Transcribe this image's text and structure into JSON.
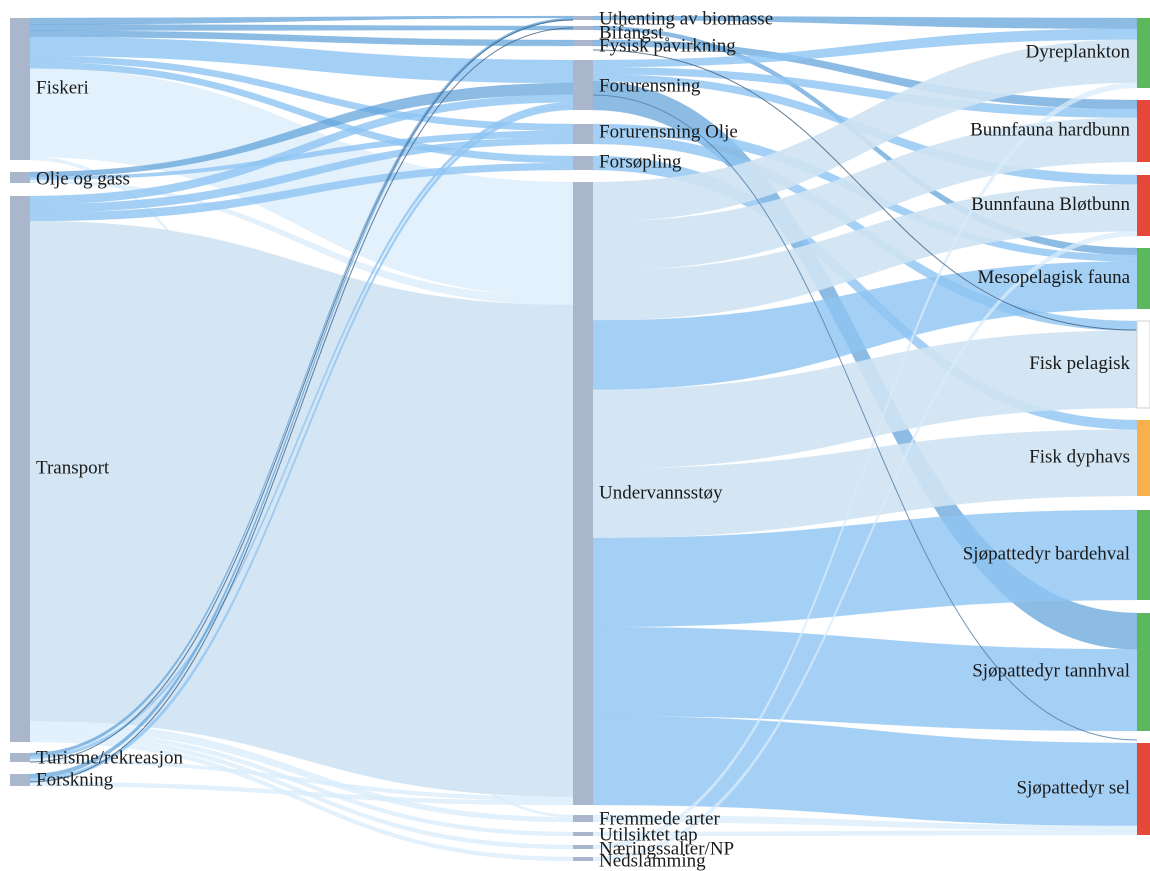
{
  "diagram": {
    "type": "sankey",
    "colors": {
      "node_grey": "#a9b6cc",
      "link_light": "#cfe3f3",
      "link_mid": "#8fc4f2",
      "link_dark": "#5b9fd9",
      "link_pale": "#d8ecfb",
      "status_green": "#5cb85c",
      "status_red": "#e5483b",
      "status_orange": "#f7b04b",
      "status_white": "#ffffff"
    },
    "sources": [
      {
        "id": "fiskeri",
        "label": "Fiskeri"
      },
      {
        "id": "olje",
        "label": "Olje og gass"
      },
      {
        "id": "transport",
        "label": "Transport"
      },
      {
        "id": "turisme",
        "label": "Turisme/rekreasjon"
      },
      {
        "id": "forskning",
        "label": "Forskning"
      }
    ],
    "pressures": [
      {
        "id": "uthenting",
        "label": "Uthenting av biomasse"
      },
      {
        "id": "bifangst",
        "label": "Bifangst"
      },
      {
        "id": "fysisk",
        "label": "Fysisk påvirkning"
      },
      {
        "id": "forurensning",
        "label": "Forurensning"
      },
      {
        "id": "forurensning_olje",
        "label": "Forurensning Olje"
      },
      {
        "id": "forsopling",
        "label": "Forsøpling"
      },
      {
        "id": "undervannsstoy",
        "label": "Undervannsstøy"
      },
      {
        "id": "fremmede",
        "label": "Fremmede arter"
      },
      {
        "id": "utilsiktet",
        "label": "Utilsiktet tap"
      },
      {
        "id": "naringssalter",
        "label": "Næringssalter/NP"
      },
      {
        "id": "nedslamming",
        "label": "Nedslamming"
      }
    ],
    "targets": [
      {
        "id": "dyreplankton",
        "label": "Dyreplankton",
        "status": "green"
      },
      {
        "id": "bunnfauna_hard",
        "label": "Bunnfauna hardbunn",
        "status": "red"
      },
      {
        "id": "bunnfauna_blot",
        "label": "Bunnfauna Bløtbunn",
        "status": "red"
      },
      {
        "id": "mesopelagisk",
        "label": "Mesopelagisk fauna",
        "status": "green"
      },
      {
        "id": "fisk_pelagisk",
        "label": "Fisk pelagisk",
        "status": "white"
      },
      {
        "id": "fisk_dyphavs",
        "label": "Fisk dyphavs",
        "status": "orange"
      },
      {
        "id": "bardehval",
        "label": "Sjøpattedyr bardehval",
        "status": "green"
      },
      {
        "id": "tannhval",
        "label": "Sjøpattedyr tannhval",
        "status": "green"
      },
      {
        "id": "sel",
        "label": "Sjøpattedyr sel",
        "status": "red"
      }
    ],
    "links": [
      {
        "source": "fiskeri",
        "target": "uthenting",
        "value": 1,
        "shade": "dark"
      },
      {
        "source": "fiskeri",
        "target": "bifangst",
        "value": 1,
        "shade": "dark"
      },
      {
        "source": "fiskeri",
        "target": "fysisk",
        "value": 1,
        "shade": "dark"
      },
      {
        "source": "fiskeri",
        "target": "forurensning",
        "value": 3,
        "shade": "mid"
      },
      {
        "source": "fiskeri",
        "target": "forurensning_olje",
        "value": 1,
        "shade": "mid"
      },
      {
        "source": "fiskeri",
        "target": "forsopling",
        "value": 1,
        "shade": "mid"
      },
      {
        "source": "fiskeri",
        "target": "undervannsstoy",
        "value": 14,
        "shade": "pale"
      },
      {
        "source": "fiskeri",
        "target": "fremmede",
        "value": 0.5,
        "shade": "pale"
      },
      {
        "source": "olje",
        "target": "forurensning",
        "value": 1.5,
        "shade": "dark"
      },
      {
        "source": "olje",
        "target": "forurensning_olje",
        "value": 1,
        "shade": "mid"
      },
      {
        "source": "olje",
        "target": "undervannsstoy",
        "value": 1,
        "shade": "pale"
      },
      {
        "source": "transport",
        "target": "forurensning",
        "value": 1,
        "shade": "mid"
      },
      {
        "source": "transport",
        "target": "forurensning_olje",
        "value": 1,
        "shade": "mid"
      },
      {
        "source": "transport",
        "target": "forsopling",
        "value": 1,
        "shade": "mid"
      },
      {
        "source": "transport",
        "target": "undervannsstoy",
        "value": 60,
        "shade": "light"
      },
      {
        "source": "transport",
        "target": "fremmede",
        "value": 1,
        "shade": "pale"
      },
      {
        "source": "transport",
        "target": "utilsiktet",
        "value": 0.5,
        "shade": "pale"
      },
      {
        "source": "transport",
        "target": "naringssalter",
        "value": 0.5,
        "shade": "pale"
      },
      {
        "source": "transport",
        "target": "nedslamming",
        "value": 0.5,
        "shade": "pale"
      },
      {
        "source": "turisme",
        "target": "uthenting",
        "value": 0.5,
        "shade": "dark"
      },
      {
        "source": "turisme",
        "target": "forurensning",
        "value": 0.5,
        "shade": "mid"
      },
      {
        "source": "turisme",
        "target": "undervannsstoy",
        "value": 0.5,
        "shade": "pale"
      },
      {
        "source": "forskning",
        "target": "uthenting",
        "value": 0.5,
        "shade": "dark"
      },
      {
        "source": "forskning",
        "target": "forurensning",
        "value": 0.5,
        "shade": "mid"
      },
      {
        "source": "forskning",
        "target": "undervannsstoy",
        "value": 0.5,
        "shade": "pale"
      },
      {
        "source": "uthenting",
        "target": "dyreplankton",
        "value": 1,
        "shade": "dark"
      },
      {
        "source": "bifangst",
        "target": "mesopelagisk",
        "value": 1,
        "shade": "dark"
      },
      {
        "source": "fysisk",
        "target": "bunnfauna_hard",
        "value": 1,
        "shade": "dark"
      },
      {
        "source": "forurensning",
        "target": "dyreplankton",
        "value": 1,
        "shade": "mid"
      },
      {
        "source": "forurensning",
        "target": "bunnfauna_hard",
        "value": 1,
        "shade": "mid"
      },
      {
        "source": "forurensning",
        "target": "bunnfauna_blot",
        "value": 1,
        "shade": "mid"
      },
      {
        "source": "forurensning",
        "target": "tannhval",
        "value": 4,
        "shade": "dark"
      },
      {
        "source": "forurensning_olje",
        "target": "mesopelagisk",
        "value": 1,
        "shade": "mid"
      },
      {
        "source": "forurensning_olje",
        "target": "fisk_pelagisk",
        "value": 1,
        "shade": "mid"
      },
      {
        "source": "forsopling",
        "target": "fisk_dyphavs",
        "value": 1,
        "shade": "mid"
      },
      {
        "source": "undervannsstoy",
        "target": "dyreplankton",
        "value": 4,
        "shade": "light"
      },
      {
        "source": "undervannsstoy",
        "target": "bunnfauna_hard",
        "value": 5,
        "shade": "light"
      },
      {
        "source": "undervannsstoy",
        "target": "bunnfauna_blot",
        "value": 5,
        "shade": "light"
      },
      {
        "source": "undervannsstoy",
        "target": "mesopelagisk",
        "value": 7,
        "shade": "mid"
      },
      {
        "source": "undervannsstoy",
        "target": "fisk_pelagisk",
        "value": 8,
        "shade": "light"
      },
      {
        "source": "undervannsstoy",
        "target": "fisk_dyphavs",
        "value": 7,
        "shade": "light"
      },
      {
        "source": "undervannsstoy",
        "target": "bardehval",
        "value": 9,
        "shade": "mid"
      },
      {
        "source": "undervannsstoy",
        "target": "tannhval",
        "value": 9,
        "shade": "mid"
      },
      {
        "source": "undervannsstoy",
        "target": "sel",
        "value": 9,
        "shade": "mid"
      },
      {
        "source": "fremmede",
        "target": "sel",
        "value": 0.5,
        "shade": "pale"
      },
      {
        "source": "utilsiktet",
        "target": "sel",
        "value": 0.5,
        "shade": "pale"
      },
      {
        "source": "naringssalter",
        "target": "dyreplankton",
        "value": 0.5,
        "shade": "pale"
      },
      {
        "source": "nedslamming",
        "target": "bunnfauna_blot",
        "value": 0.5,
        "shade": "pale"
      }
    ]
  }
}
